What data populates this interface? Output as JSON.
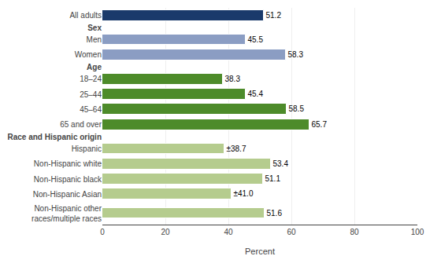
{
  "chart_data": {
    "type": "bar",
    "orientation": "horizontal",
    "categories": [
      "All adults",
      "Sex",
      "Men",
      "Women",
      "Age",
      "18–24",
      "25–44",
      "45–64",
      "65 and over",
      "Race and Hispanic origin",
      "Hispanic",
      "Non-Hispanic white",
      "Non-Hispanic black",
      "Non-Hispanic Asian",
      "Non-Hispanic other\nraces/multiple races"
    ],
    "values": [
      51.2,
      null,
      45.5,
      58.3,
      null,
      38.3,
      45.4,
      58.5,
      65.7,
      null,
      38.7,
      53.4,
      51.1,
      41.0,
      51.6
    ],
    "colors": [
      "#1a3a6b",
      null,
      "#8b9dc3",
      "#8b9dc3",
      null,
      "#4d8b2a",
      "#4d8b2a",
      "#4d8b2a",
      "#4d8b2a",
      null,
      "#b5cc8e",
      "#b5cc8e",
      "#b5cc8e",
      "#b5cc8e",
      "#b5cc8e"
    ],
    "data_labels": true,
    "value_labels": [
      "51.2",
      null,
      "45.5",
      "58.3",
      null,
      "38.3",
      "45.4",
      "58.5",
      "65.7",
      null,
      "±38.7",
      "53.4",
      "51.1",
      "±41.0",
      "51.6"
    ],
    "xlabel": "Percent",
    "xlim": [
      0,
      100
    ],
    "xticks": [
      0,
      20,
      40,
      60,
      80,
      100
    ],
    "grid": true
  }
}
